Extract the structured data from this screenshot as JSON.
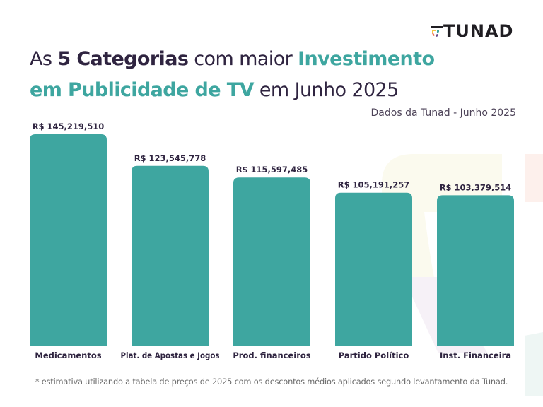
{
  "brand": {
    "name": "TUNAD",
    "logo_icon": "tunad-logo-icon",
    "colors": [
      "#f4c542",
      "#e8684a",
      "#3ea6a0",
      "#6b4f8c"
    ]
  },
  "title": {
    "part1": "As ",
    "part2": "5 Categorias",
    "part3": " com maior ",
    "part4": "Investimento",
    "part5": "em Publicidade de TV",
    "part6": " em Junho 2025"
  },
  "subtitle": "Dados da Tunad - Junho 2025",
  "footnote": "* estimativa utilizando a tabela de preços de 2025 com os descontos médios aplicados segundo levantamento da Tunad.",
  "colors": {
    "bar": "#3ea6a0",
    "text_dark": "#2f2440",
    "accent": "#3ea6a0"
  },
  "chart_data": {
    "type": "bar",
    "title": "As 5 Categorias com maior Investimento em Publicidade de TV em Junho 2025",
    "xlabel": "",
    "ylabel": "",
    "categories": [
      "Medicamentos",
      "Plat. de Apostas e Jogos",
      "Prod. financeiros",
      "Partido Político",
      "Inst. Financeira"
    ],
    "values": [
      145219510,
      123545778,
      115597485,
      105191257,
      103379514
    ],
    "value_labels": [
      "R$ 145,219,510",
      "R$ 123,545,778",
      "R$ 115,597,485",
      "R$ 105,191,257",
      "R$ 103,379,514"
    ],
    "ylim": [
      0,
      145219510
    ],
    "grid": false,
    "legend": "none"
  }
}
